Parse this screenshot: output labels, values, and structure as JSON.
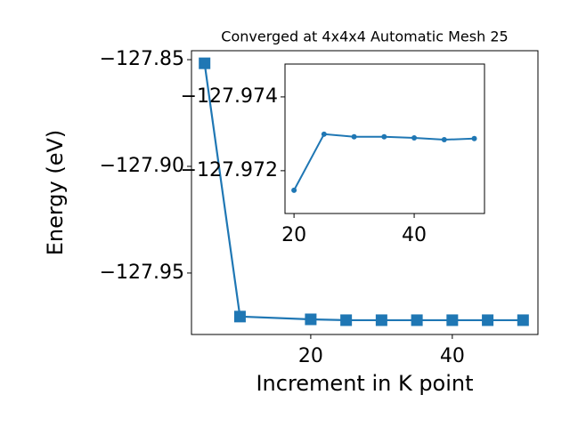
{
  "chart_data": [
    {
      "type": "line",
      "title": "Converged at 4x4x4 Automatic Mesh 25",
      "x_label": "Increment in K point",
      "y_label": "Energy (eV)",
      "x": [
        5,
        10,
        20,
        25,
        30,
        35,
        40,
        45,
        50
      ],
      "series": [
        {
          "color": "#1f77b4",
          "marker": "square",
          "values": [
            -127.8517,
            -127.9704,
            -127.9717,
            -127.9721,
            -127.9721,
            -127.9721,
            -127.9721,
            -127.9721,
            -127.9721
          ]
        }
      ],
      "xlim": [
        3.15,
        52.1
      ],
      "xticks": [
        20,
        40
      ],
      "ylim": [
        -127.9788,
        -127.8458
      ],
      "yticks": [
        {
          "value": -127.95,
          "label": "−127.95"
        },
        {
          "value": -127.9,
          "label": "−127.90"
        },
        {
          "value": -127.85,
          "label": "−127.85"
        }
      ]
    },
    {
      "type": "line",
      "x": [
        20,
        25,
        30,
        35,
        40,
        45,
        50
      ],
      "series": [
        {
          "color": "#1f77b4",
          "marker": "circle",
          "values": [
            -127.97147,
            -127.97299,
            -127.97292,
            -127.97292,
            -127.97289,
            -127.97284,
            -127.97287
          ]
        }
      ],
      "xlim": [
        18.5,
        51.7
      ],
      "xticks": [
        20,
        40
      ],
      "ylim": [
        -127.97084,
        -127.97489
      ],
      "yticks": [
        {
          "value": -127.972,
          "label": "−127.972"
        },
        {
          "value": -127.974,
          "label": "−127.974"
        }
      ]
    }
  ]
}
